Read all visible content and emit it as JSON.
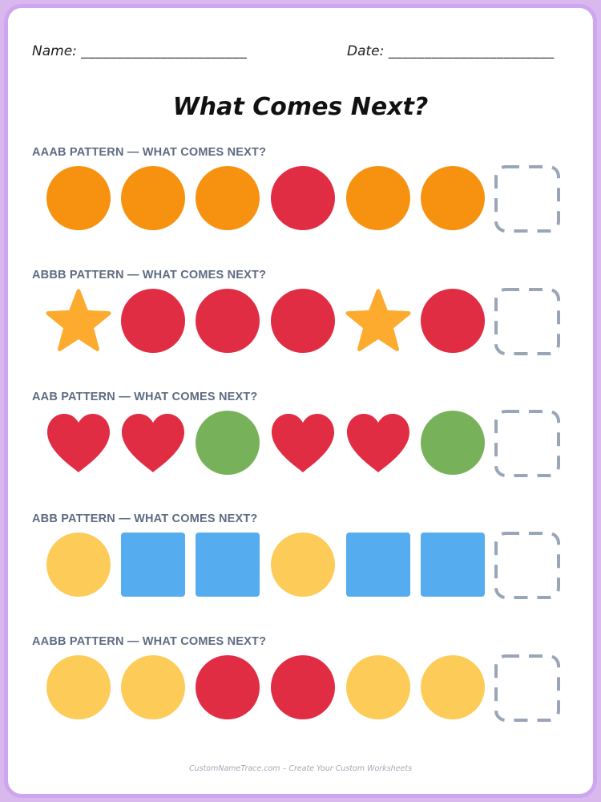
{
  "header": {
    "name_label": "Name:",
    "name_line": "_______________________",
    "date_label": "Date:",
    "date_line": "_______________________"
  },
  "title": "What Comes Next?",
  "colors": {
    "orange": "#f6920f",
    "red": "#e02d44",
    "gold": "#fdab2f",
    "green": "#77b25a",
    "yellow": "#fdcb58",
    "blue": "#55acee",
    "blank_border": "#9aa5b8"
  },
  "patterns": [
    {
      "label": "AAAB PATTERN — WHAT COMES NEXT?",
      "items": [
        {
          "shape": "circle",
          "color": "orange"
        },
        {
          "shape": "circle",
          "color": "orange"
        },
        {
          "shape": "circle",
          "color": "orange"
        },
        {
          "shape": "circle",
          "color": "red"
        },
        {
          "shape": "circle",
          "color": "orange"
        },
        {
          "shape": "circle",
          "color": "orange"
        },
        {
          "shape": "blank",
          "color": "blank_border"
        }
      ]
    },
    {
      "label": "ABBB PATTERN — WHAT COMES NEXT?",
      "items": [
        {
          "shape": "star",
          "color": "gold"
        },
        {
          "shape": "circle",
          "color": "red"
        },
        {
          "shape": "circle",
          "color": "red"
        },
        {
          "shape": "circle",
          "color": "red"
        },
        {
          "shape": "star",
          "color": "gold"
        },
        {
          "shape": "circle",
          "color": "red"
        },
        {
          "shape": "blank",
          "color": "blank_border"
        }
      ]
    },
    {
      "label": "AAB PATTERN — WHAT COMES NEXT?",
      "items": [
        {
          "shape": "heart",
          "color": "red"
        },
        {
          "shape": "heart",
          "color": "red"
        },
        {
          "shape": "circle",
          "color": "green"
        },
        {
          "shape": "heart",
          "color": "red"
        },
        {
          "shape": "heart",
          "color": "red"
        },
        {
          "shape": "circle",
          "color": "green"
        },
        {
          "shape": "blank",
          "color": "blank_border"
        }
      ]
    },
    {
      "label": "ABB PATTERN — WHAT COMES NEXT?",
      "items": [
        {
          "shape": "circle",
          "color": "yellow"
        },
        {
          "shape": "square",
          "color": "blue"
        },
        {
          "shape": "square",
          "color": "blue"
        },
        {
          "shape": "circle",
          "color": "yellow"
        },
        {
          "shape": "square",
          "color": "blue"
        },
        {
          "shape": "square",
          "color": "blue"
        },
        {
          "shape": "blank",
          "color": "blank_border"
        }
      ]
    },
    {
      "label": "AABB PATTERN — WHAT COMES NEXT?",
      "items": [
        {
          "shape": "circle",
          "color": "yellow"
        },
        {
          "shape": "circle",
          "color": "yellow"
        },
        {
          "shape": "circle",
          "color": "red"
        },
        {
          "shape": "circle",
          "color": "red"
        },
        {
          "shape": "circle",
          "color": "yellow"
        },
        {
          "shape": "circle",
          "color": "yellow"
        },
        {
          "shape": "blank",
          "color": "blank_border"
        }
      ]
    }
  ],
  "footer": "CustomNameTrace.com – Create Your Custom Worksheets"
}
